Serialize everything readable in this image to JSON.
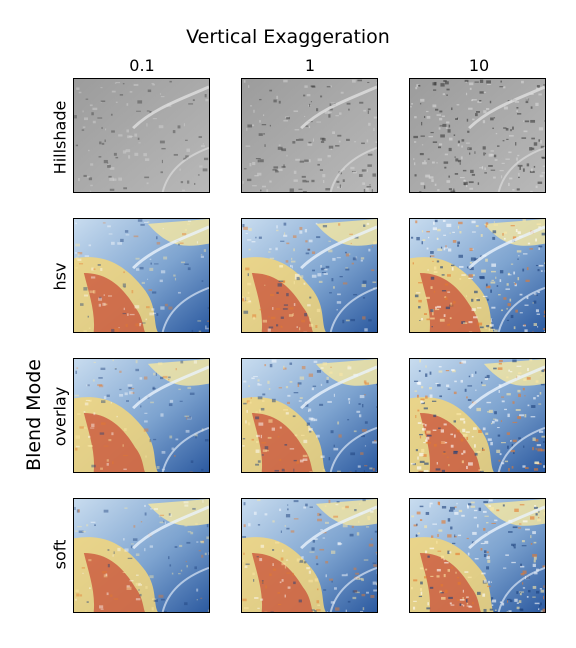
{
  "figure": {
    "title": "Vertical Exaggeration",
    "blend_mode_label": "Blend Mode"
  },
  "columns": [
    {
      "label": "0.1"
    },
    {
      "label": "1"
    },
    {
      "label": "10"
    }
  ],
  "rows": [
    {
      "label": "Hillshade",
      "kind": "gray"
    },
    {
      "label": "hsv",
      "kind": "color"
    },
    {
      "label": "overlay",
      "kind": "color"
    },
    {
      "label": "soft",
      "kind": "color"
    }
  ],
  "colors": {
    "low": "#2c5aa0",
    "mid": "#fde9a8",
    "high": "#c0211b",
    "gray_dark": "#3a3a3a",
    "gray_light": "#d8d8d8"
  }
}
